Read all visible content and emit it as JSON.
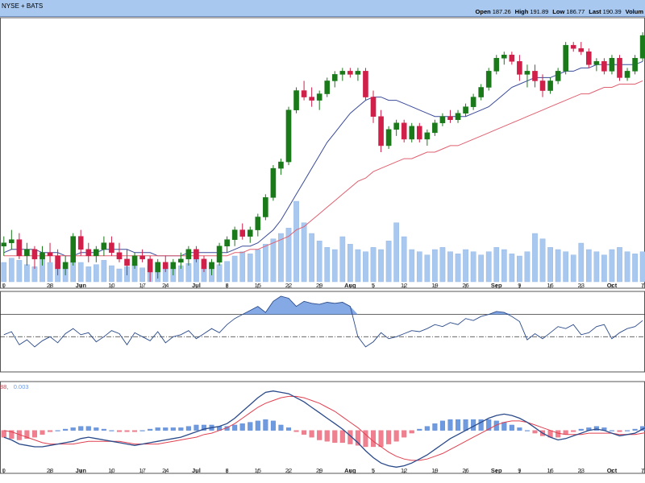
{
  "header": {
    "exchange": "NYSE + BATS",
    "quote": [
      {
        "label": "Open",
        "value": "187.26"
      },
      {
        "label": "High",
        "value": "191.89"
      },
      {
        "label": "Low",
        "value": "186.77"
      },
      {
        "label": "Last",
        "value": "190.39"
      },
      {
        "label": "Volum",
        "value": ""
      }
    ]
  },
  "colors": {
    "up": "#1a7a1a",
    "down": "#d0204a",
    "volume": "#a9c8f0",
    "ma_short": "#3a4a9a",
    "ma_long": "#e06070",
    "macd_line": "#2a4a8a",
    "signal_line": "#e04050",
    "hist_pos": "#6e9ae0",
    "hist_neg": "#f08090",
    "osc_fill": "#6e9ae0"
  },
  "chart_data": [
    {
      "type": "candlestick",
      "panel": "price",
      "title": "",
      "x_ticks": [
        "0",
        "28",
        "Jun",
        "10",
        "17",
        "24",
        "Jul",
        "8",
        "15",
        "22",
        "29",
        "Aug",
        "5",
        "12",
        "19",
        "26",
        "Sep",
        "9",
        "16",
        "23",
        "Oct",
        "7"
      ],
      "x_ticks_bold": [
        "Jun",
        "Jul",
        "Aug",
        "Sep",
        "Oct"
      ],
      "ylim": [
        120,
        200
      ],
      "grid": false,
      "candles": [
        [
          131,
          134,
          128,
          132
        ],
        [
          132,
          136,
          130,
          133
        ],
        [
          133,
          135,
          127,
          128
        ],
        [
          128,
          132,
          125,
          130
        ],
        [
          130,
          131,
          124,
          127
        ],
        [
          127,
          131,
          125,
          129
        ],
        [
          129,
          132,
          126,
          128
        ],
        [
          128,
          130,
          122,
          124
        ],
        [
          124,
          128,
          122,
          126
        ],
        [
          126,
          135,
          125,
          134
        ],
        [
          134,
          136,
          128,
          130
        ],
        [
          130,
          132,
          126,
          128
        ],
        [
          128,
          131,
          126,
          130
        ],
        [
          130,
          134,
          128,
          132
        ],
        [
          132,
          134,
          128,
          129
        ],
        [
          129,
          132,
          126,
          127
        ],
        [
          127,
          130,
          122,
          125
        ],
        [
          125,
          129,
          124,
          128
        ],
        [
          128,
          130,
          126,
          127
        ],
        [
          127,
          128,
          120,
          123
        ],
        [
          123,
          127,
          121,
          126
        ],
        [
          126,
          128,
          123,
          124
        ],
        [
          124,
          127,
          122,
          126
        ],
        [
          126,
          129,
          124,
          127
        ],
        [
          127,
          131,
          125,
          130
        ],
        [
          130,
          131,
          126,
          127
        ],
        [
          127,
          128,
          123,
          124
        ],
        [
          124,
          127,
          122,
          126
        ],
        [
          126,
          132,
          125,
          131
        ],
        [
          131,
          134,
          129,
          133
        ],
        [
          133,
          137,
          131,
          136
        ],
        [
          136,
          138,
          133,
          134
        ],
        [
          134,
          137,
          132,
          136
        ],
        [
          136,
          141,
          134,
          140
        ],
        [
          140,
          147,
          139,
          146
        ],
        [
          146,
          156,
          145,
          155
        ],
        [
          155,
          158,
          153,
          157
        ],
        [
          157,
          174,
          156,
          173
        ],
        [
          173,
          180,
          172,
          179
        ],
        [
          179,
          182,
          176,
          177
        ],
        [
          177,
          180,
          174,
          176
        ],
        [
          176,
          179,
          173,
          178
        ],
        [
          178,
          183,
          177,
          182
        ],
        [
          182,
          185,
          180,
          184
        ],
        [
          184,
          186,
          182,
          185
        ],
        [
          185,
          186,
          183,
          184
        ],
        [
          184,
          186,
          182,
          185
        ],
        [
          185,
          186,
          176,
          177
        ],
        [
          177,
          179,
          169,
          171
        ],
        [
          171,
          173,
          160,
          162
        ],
        [
          162,
          168,
          161,
          167
        ],
        [
          167,
          170,
          165,
          169
        ],
        [
          169,
          170,
          163,
          164
        ],
        [
          164,
          169,
          163,
          168
        ],
        [
          168,
          169,
          163,
          164
        ],
        [
          164,
          167,
          162,
          166
        ],
        [
          166,
          170,
          165,
          169
        ],
        [
          169,
          172,
          168,
          171
        ],
        [
          171,
          173,
          169,
          170
        ],
        [
          170,
          173,
          169,
          172
        ],
        [
          172,
          175,
          171,
          174
        ],
        [
          174,
          178,
          173,
          177
        ],
        [
          177,
          181,
          176,
          180
        ],
        [
          180,
          186,
          179,
          185
        ],
        [
          185,
          190,
          184,
          189
        ],
        [
          189,
          191,
          187,
          190
        ],
        [
          190,
          191,
          187,
          188
        ],
        [
          188,
          190,
          182,
          184
        ],
        [
          184,
          187,
          180,
          185
        ],
        [
          185,
          187,
          180,
          182
        ],
        [
          182,
          184,
          177,
          179
        ],
        [
          179,
          183,
          178,
          182
        ],
        [
          182,
          186,
          181,
          185
        ],
        [
          185,
          194,
          184,
          193
        ],
        [
          193,
          194,
          191,
          192
        ],
        [
          192,
          194,
          190,
          191
        ],
        [
          191,
          192,
          186,
          187
        ],
        [
          187,
          189,
          185,
          188
        ],
        [
          188,
          189,
          184,
          185
        ],
        [
          185,
          190,
          184,
          189
        ],
        [
          189,
          190,
          182,
          183
        ],
        [
          183,
          186,
          182,
          185
        ],
        [
          185,
          190,
          184,
          189
        ],
        [
          189,
          197,
          188,
          196
        ]
      ],
      "series": [
        {
          "name": "",
          "values": [
            129,
            130,
            130,
            130,
            130,
            129,
            129,
            129,
            128,
            128,
            129,
            129,
            129,
            130,
            130,
            130,
            130,
            129,
            129,
            129,
            128,
            128,
            128,
            128,
            129,
            129,
            129,
            129,
            129,
            129,
            130,
            131,
            131,
            132,
            134,
            136,
            139,
            143,
            147,
            151,
            155,
            159,
            163,
            166,
            169,
            172,
            174,
            176,
            177,
            177,
            176,
            176,
            175,
            174,
            173,
            172,
            171,
            171,
            171,
            171,
            171,
            172,
            173,
            174,
            176,
            178,
            180,
            181,
            182,
            183,
            183,
            183,
            184,
            185,
            185,
            186,
            186,
            187,
            187,
            187,
            187,
            187,
            187,
            188
          ]
        },
        {
          "name": "",
          "values": [
            128,
            128,
            128,
            128,
            128,
            128,
            128,
            128,
            128,
            128,
            128,
            128,
            128,
            128,
            128,
            128,
            128,
            128,
            128,
            128,
            128,
            128,
            128,
            128,
            128,
            128,
            128,
            128,
            128,
            128,
            129,
            129,
            130,
            130,
            131,
            132,
            133,
            134,
            136,
            137,
            139,
            141,
            143,
            145,
            147,
            149,
            151,
            152,
            154,
            155,
            156,
            157,
            158,
            158,
            159,
            160,
            160,
            161,
            162,
            162,
            163,
            164,
            165,
            166,
            167,
            168,
            169,
            170,
            171,
            172,
            173,
            174,
            175,
            176,
            177,
            178,
            178,
            179,
            180,
            180,
            181,
            181,
            181,
            182
          ]
        }
      ]
    },
    {
      "type": "bar",
      "panel": "volume",
      "title": "",
      "values": [
        18,
        22,
        20,
        16,
        14,
        25,
        18,
        16,
        15,
        20,
        18,
        14,
        16,
        20,
        15,
        12,
        14,
        16,
        13,
        15,
        18,
        16,
        14,
        15,
        17,
        22,
        20,
        18,
        16,
        19,
        24,
        28,
        26,
        30,
        35,
        40,
        45,
        50,
        75,
        55,
        45,
        38,
        32,
        30,
        42,
        35,
        30,
        28,
        32,
        30,
        38,
        55,
        42,
        30,
        28,
        25,
        30,
        32,
        28,
        26,
        30,
        28,
        25,
        28,
        32,
        30,
        26,
        24,
        28,
        45,
        40,
        32,
        30,
        28,
        25,
        36,
        30,
        28,
        25,
        30,
        32,
        28,
        26,
        28
      ]
    },
    {
      "type": "line",
      "panel": "oscillator",
      "title": "",
      "ylim": [
        -30,
        40
      ],
      "reference_lines": [
        0,
        22
      ],
      "series": [
        {
          "name": "",
          "values": [
            2,
            5,
            -8,
            -3,
            -10,
            -4,
            0,
            -6,
            3,
            8,
            2,
            4,
            -5,
            0,
            6,
            3,
            -8,
            4,
            0,
            -4,
            5,
            -6,
            0,
            2,
            6,
            -2,
            3,
            8,
            4,
            12,
            18,
            22,
            26,
            30,
            24,
            35,
            40,
            38,
            30,
            35,
            33,
            32,
            34,
            33,
            34,
            30,
            0,
            -10,
            -5,
            4,
            -2,
            0,
            3,
            6,
            5,
            8,
            12,
            10,
            14,
            12,
            18,
            16,
            20,
            22,
            25,
            24,
            20,
            15,
            -3,
            3,
            -2,
            4,
            10,
            8,
            12,
            2,
            4,
            10,
            12,
            -2,
            4,
            8,
            10,
            16
          ]
        }
      ]
    },
    {
      "type": "bar",
      "panel": "macd",
      "title": "",
      "ylim": [
        -28,
        30
      ],
      "series": [
        {
          "name": "",
          "values": [
            -5,
            -7,
            -10,
            -11,
            -12,
            -12,
            -11,
            -10,
            -9,
            -8,
            -6,
            -5,
            -6,
            -7,
            -8,
            -9,
            -10,
            -11,
            -10,
            -9,
            -8,
            -7,
            -6,
            -5,
            -3,
            -1,
            1,
            2,
            3,
            5,
            9,
            14,
            19,
            24,
            28,
            29,
            28,
            27,
            24,
            21,
            17,
            13,
            9,
            5,
            1,
            -4,
            -9,
            -15,
            -20,
            -24,
            -26,
            -27,
            -26,
            -24,
            -21,
            -18,
            -14,
            -10,
            -6,
            -3,
            0,
            3,
            6,
            9,
            11,
            12,
            11,
            9,
            6,
            2,
            -2,
            -5,
            -7,
            -6,
            -4,
            -2,
            0,
            1,
            0,
            -2,
            -4,
            -3,
            -2,
            1,
            4
          ]
        },
        {
          "name": "",
          "values": [
            0,
            -1,
            -3,
            -5,
            -7,
            -9,
            -10,
            -10,
            -10,
            -10,
            -9,
            -8,
            -8,
            -8,
            -8,
            -8,
            -9,
            -10,
            -10,
            -10,
            -10,
            -9,
            -8,
            -7,
            -6,
            -5,
            -3,
            -2,
            0,
            2,
            5,
            9,
            13,
            17,
            20,
            22,
            24,
            25,
            25,
            24,
            22,
            20,
            17,
            14,
            10,
            6,
            2,
            -3,
            -8,
            -12,
            -16,
            -19,
            -21,
            -22,
            -22,
            -21,
            -19,
            -17,
            -14,
            -11,
            -8,
            -5,
            -2,
            1,
            4,
            6,
            7,
            7,
            6,
            4,
            2,
            0,
            -2,
            -3,
            -3,
            -3,
            -2,
            -2,
            -2,
            -2,
            -3,
            -3,
            -3,
            -2,
            -1
          ]
        },
        {
          "name": "",
          "values": [
            -5,
            -6,
            -7,
            -6,
            -5,
            -3,
            -1,
            0,
            1,
            2,
            3,
            3,
            2,
            1,
            0,
            -1,
            -1,
            -1,
            0,
            1,
            2,
            2,
            2,
            2,
            3,
            4,
            4,
            4,
            3,
            3,
            4,
            5,
            6,
            7,
            8,
            7,
            4,
            2,
            -1,
            -3,
            -5,
            -7,
            -8,
            -9,
            -9,
            -10,
            -11,
            -12,
            -12,
            -12,
            -10,
            -8,
            -5,
            -2,
            1,
            3,
            5,
            7,
            8,
            8,
            8,
            8,
            8,
            8,
            7,
            6,
            4,
            2,
            0,
            -2,
            -4,
            -5,
            -5,
            -3,
            -1,
            1,
            2,
            3,
            2,
            0,
            -1,
            0,
            1,
            3,
            5
          ]
        }
      ],
      "readout": [
        {
          "text": "88,",
          "color": "#e04050"
        },
        {
          "text": "0.003",
          "color": "#6e9ae0"
        }
      ]
    }
  ]
}
